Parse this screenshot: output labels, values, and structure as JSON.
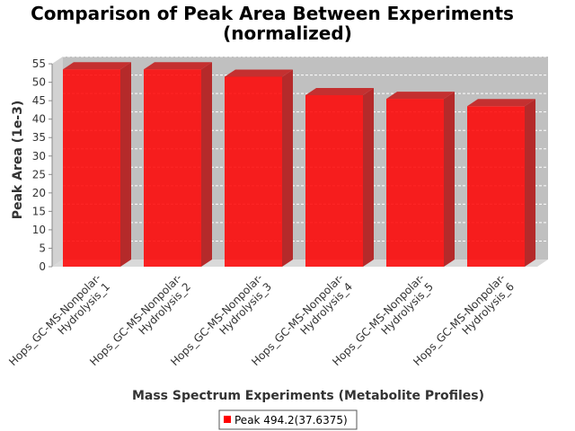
{
  "chart_data": {
    "type": "bar",
    "title": "Comparison of Peak Area Between Experiments",
    "subtitle": "(normalized)",
    "xlabel": "Mass Spectrum Experiments (Metabolite Profiles)",
    "ylabel": "Peak Area (1e-3)",
    "ylim": [
      0,
      55
    ],
    "yticks": [
      "0",
      "5",
      "10",
      "15",
      "20",
      "25",
      "30",
      "35",
      "40",
      "45",
      "50",
      "55"
    ],
    "categories": [
      [
        "Hops_GC-MS-Nonpolar-",
        "Hydrolysis_1"
      ],
      [
        "Hops_GC-MS-Nonpolar-",
        "Hydrolysis_2"
      ],
      [
        "Hops_GC-MS-Nonpolar-",
        "Hydrolysis_3"
      ],
      [
        "Hops_GC-MS-Nonpolar-",
        "Hydrolysis_4"
      ],
      [
        "Hops_GC-MS-Nonpolar-",
        "Hydrolysis_5"
      ],
      [
        "Hops_GC-MS-Nonpolar-",
        "Hydrolysis_6"
      ]
    ],
    "series": [
      {
        "name": "Peak 494.2(37.6375)",
        "color": "#ff0000",
        "values": [
          53.5,
          53.5,
          51.5,
          46.5,
          45.5,
          43.5
        ]
      }
    ],
    "grid": true,
    "legend_position": "bottom",
    "style": "3d-bar"
  }
}
